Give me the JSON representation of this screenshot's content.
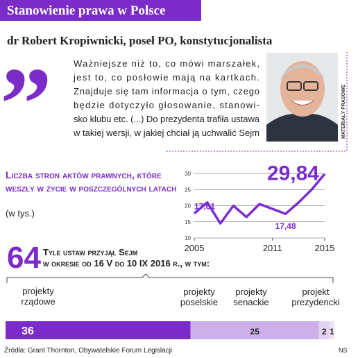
{
  "header": {
    "title": "Stanowienie prawa w Polsce",
    "subtitle": "dr Robert Kropiwnicki, poseł PO, konstytucjonalista"
  },
  "quote": {
    "lines": [
      "Ważniejsze niż to, co mówi marszałek,",
      "jest to, co posłowie mają na kartkach.",
      "Znajduje się tam informacja o tym, czego",
      "będzie dotyczyło głosowanie, stanowi-",
      "sko klubu etc. (...) Do prezydenta trafiła ustawa",
      "w takiej wersji, w jakiej chciał ją uchwalić Sejm"
    ]
  },
  "photo_credit": "MATERIAŁY PRASOWE",
  "chart_data": [
    {
      "type": "line",
      "title": "Liczba stron aktów prawnych, które weszły w życie w poszczególnych latach",
      "subtitle": "(w tys.)",
      "x": [
        2005,
        2006,
        2007,
        2008,
        2009,
        2010,
        2011,
        2012,
        2013,
        2014,
        2015
      ],
      "values": [
        17.61,
        21,
        14.5,
        20,
        16.5,
        20.5,
        19,
        17.48,
        21,
        25,
        29.84
      ],
      "value_labels": [
        "17,61",
        null,
        null,
        null,
        null,
        null,
        null,
        "17,48",
        null,
        null,
        "29,84"
      ],
      "color": "#7b2cd0",
      "xlim": [
        2005,
        2015
      ],
      "xticks": [
        2005,
        2011,
        2015
      ],
      "ylim": [
        10,
        30
      ],
      "yticks": [
        10,
        15,
        20,
        25,
        30
      ],
      "grid": true
    },
    {
      "type": "stacked-bar",
      "total": 64,
      "title": "Tyle ustaw przyjął Sejm",
      "subtitle": "w okresie od 16 V do 10 IX 2016 r., w tym:",
      "categories": [
        "projekty rządowe",
        "projekty poselskie",
        "projekty senackie",
        "projekt prezydencki"
      ],
      "values": [
        36,
        25,
        2,
        1
      ],
      "colors": [
        "#7b2cc8",
        "#cdb0ea",
        "#e0d2f0",
        "#ece4f6"
      ]
    }
  ],
  "footer": {
    "source": "Źródła: Grant Thornton, Obywatelskie Forum Legislacji",
    "credit": "NS"
  }
}
